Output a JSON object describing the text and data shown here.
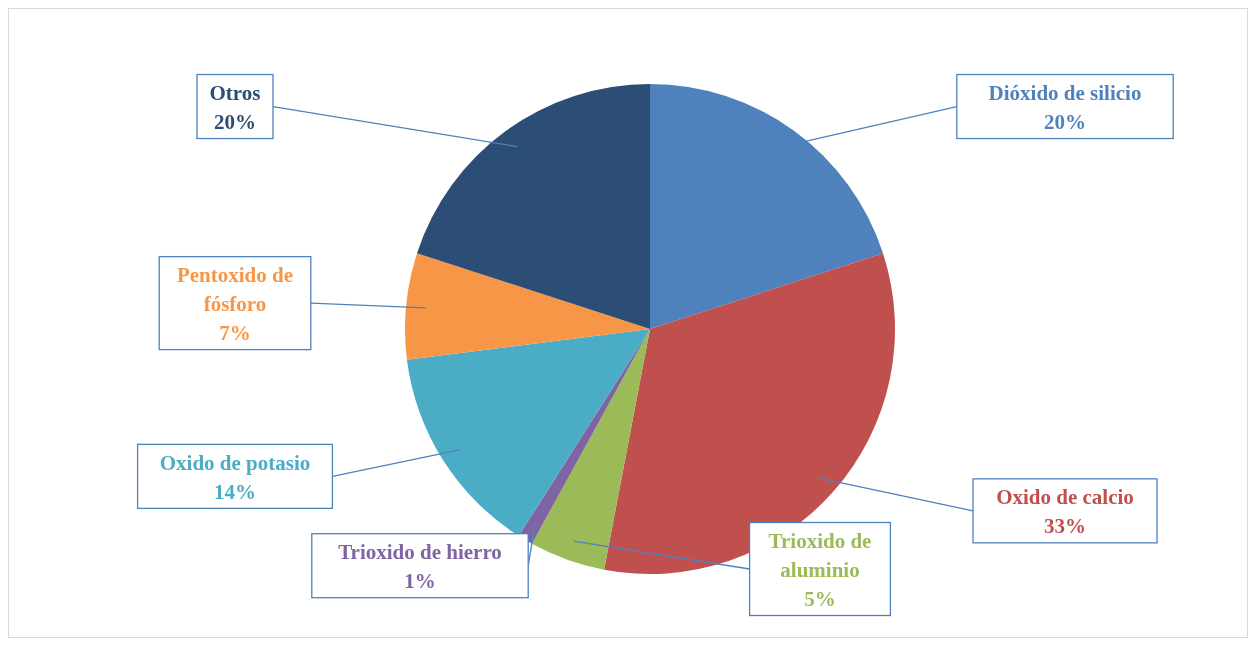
{
  "chart_data": {
    "type": "pie",
    "categories": [
      "Dióxido de silicio",
      "Oxido de calcio",
      "Trioxido de aluminio",
      "Trioxido de hierro",
      "Oxido de potasio",
      "Pentoxido de fósforo",
      "Otros"
    ],
    "values": [
      20,
      33,
      5,
      1,
      14,
      7,
      20
    ],
    "value_labels": [
      "20%",
      "33%",
      "5%",
      "1%",
      "14%",
      "7%",
      "20%"
    ],
    "colors": [
      "#4f81bd",
      "#c0504d",
      "#9bbb59",
      "#8064a2",
      "#4bacc6",
      "#f79646",
      "#2c4d75"
    ],
    "legend": false
  }
}
